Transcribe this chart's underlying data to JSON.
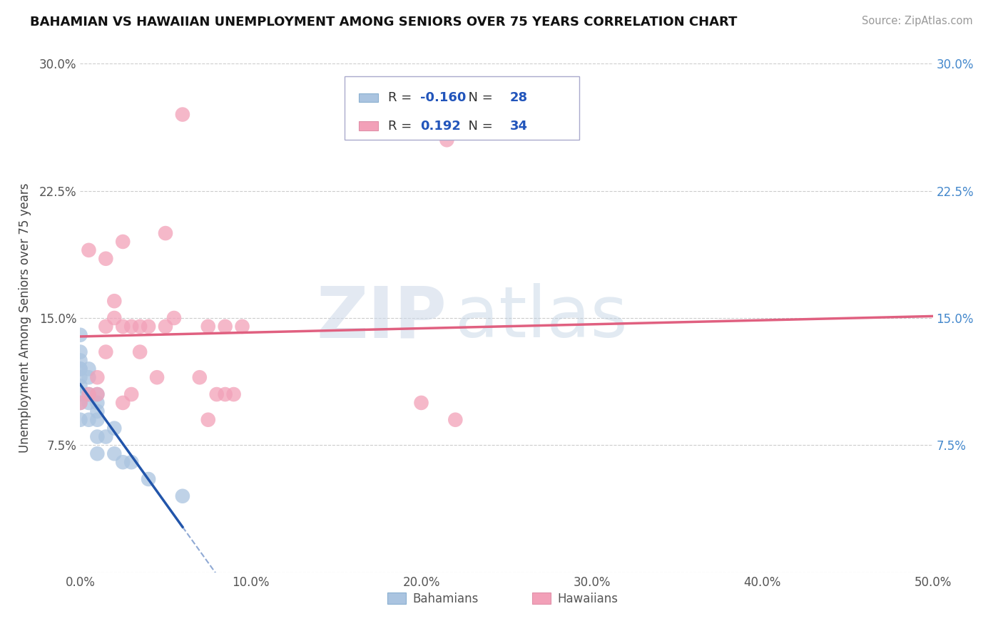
{
  "title": "BAHAMIAN VS HAWAIIAN UNEMPLOYMENT AMONG SENIORS OVER 75 YEARS CORRELATION CHART",
  "source": "Source: ZipAtlas.com",
  "ylabel": "Unemployment Among Seniors over 75 years",
  "xlim": [
    0.0,
    0.5
  ],
  "ylim": [
    0.0,
    0.3
  ],
  "xticks": [
    0.0,
    0.1,
    0.2,
    0.3,
    0.4,
    0.5
  ],
  "xticklabels": [
    "0.0%",
    "10.0%",
    "20.0%",
    "30.0%",
    "40.0%",
    "50.0%"
  ],
  "yticks": [
    0.0,
    0.075,
    0.15,
    0.225,
    0.3
  ],
  "yticklabels_left": [
    "",
    "7.5%",
    "15.0%",
    "22.5%",
    "30.0%"
  ],
  "yticklabels_right": [
    "",
    "7.5%",
    "15.0%",
    "22.5%",
    "30.0%"
  ],
  "r_bahamian": -0.16,
  "n_bahamian": 28,
  "r_hawaiian": 0.192,
  "n_hawaiian": 34,
  "bahamian_color": "#aac4e0",
  "hawaiian_color": "#f2a0b8",
  "trendline_bahamian_color": "#2255aa",
  "trendline_hawaiian_color": "#e06080",
  "watermark_zip": "ZIP",
  "watermark_atlas": "atlas",
  "bahamian_x": [
    0.0,
    0.0,
    0.0,
    0.0,
    0.0,
    0.0,
    0.0,
    0.0,
    0.0,
    0.0,
    0.005,
    0.005,
    0.005,
    0.005,
    0.005,
    0.01,
    0.01,
    0.01,
    0.01,
    0.01,
    0.01,
    0.015,
    0.02,
    0.02,
    0.025,
    0.03,
    0.04,
    0.06
  ],
  "bahamian_y": [
    0.09,
    0.1,
    0.105,
    0.11,
    0.115,
    0.12,
    0.12,
    0.125,
    0.13,
    0.14,
    0.09,
    0.1,
    0.105,
    0.115,
    0.12,
    0.07,
    0.08,
    0.09,
    0.095,
    0.1,
    0.105,
    0.08,
    0.07,
    0.085,
    0.065,
    0.065,
    0.055,
    0.045
  ],
  "hawaiian_x": [
    0.0,
    0.005,
    0.005,
    0.01,
    0.01,
    0.015,
    0.015,
    0.015,
    0.02,
    0.02,
    0.025,
    0.025,
    0.025,
    0.03,
    0.03,
    0.035,
    0.035,
    0.04,
    0.045,
    0.05,
    0.05,
    0.055,
    0.06,
    0.07,
    0.075,
    0.075,
    0.08,
    0.085,
    0.085,
    0.09,
    0.095,
    0.2,
    0.215,
    0.22
  ],
  "hawaiian_y": [
    0.1,
    0.105,
    0.19,
    0.115,
    0.105,
    0.13,
    0.145,
    0.185,
    0.15,
    0.16,
    0.1,
    0.145,
    0.195,
    0.105,
    0.145,
    0.13,
    0.145,
    0.145,
    0.115,
    0.145,
    0.2,
    0.15,
    0.27,
    0.115,
    0.09,
    0.145,
    0.105,
    0.105,
    0.145,
    0.105,
    0.145,
    0.1,
    0.255,
    0.09
  ]
}
